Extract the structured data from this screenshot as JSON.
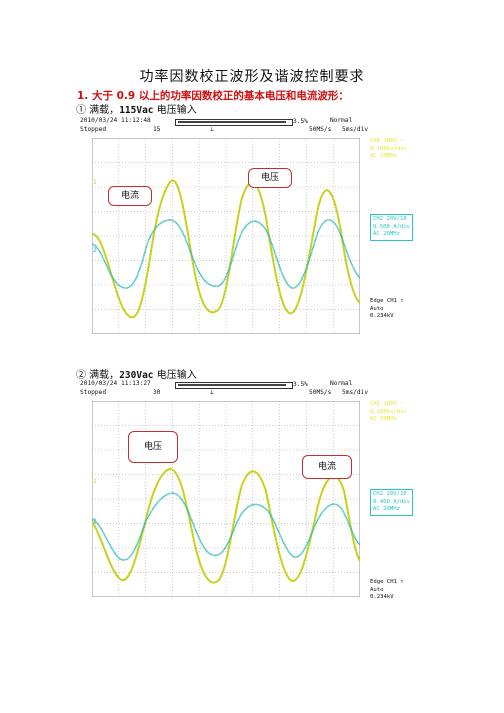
{
  "document": {
    "title": "功率因数校正波形及谐波控制要求",
    "section_heading": "1.   大于 0.9 以上的功率因数校正的基本电压和电流波形："
  },
  "figures": [
    {
      "caption_prefix": "①  满载，",
      "caption_value": "115Vac",
      "caption_suffix": " 电压输入",
      "header": {
        "datetime": "2010/03/24  11:12:48",
        "status": "Stopped",
        "count": "15",
        "trig_pos": "3.5%",
        "mode": "Normal",
        "rate": "50MS/s",
        "timebase": "5ms/div"
      },
      "ch1": [
        "CH1 100V ~",
        "0.100kv/div",
        "AC  20MHz"
      ],
      "ch2": [
        "CH2 20V/10",
        "0.500 A/div",
        "AC  20MHz"
      ],
      "trigger": [
        "Edge CH1 ↑",
        "Auto",
        "0.234kV"
      ],
      "callouts": {
        "current": "电流",
        "voltage": "电压"
      }
    },
    {
      "caption_prefix": "②  满载，",
      "caption_value": "230Vac",
      "caption_suffix": " 电压输入",
      "header": {
        "datetime": "2010/03/24  11:13:27",
        "status": "Stopped",
        "count": "30",
        "trig_pos": "3.5%",
        "mode": "Normal",
        "rate": "50MS/s",
        "timebase": "5ms/div"
      },
      "ch1": [
        "CH1 100V ~",
        "0.200kv/div",
        "AC  20MHz"
      ],
      "ch2": [
        "CH2 20V/10",
        "0.400 A/div",
        "AC  20MHz"
      ],
      "trigger": [
        "Edge CH1 ↑",
        "Auto",
        "0.234kV"
      ],
      "callouts": {
        "voltage": "电压",
        "current": "电流"
      }
    }
  ],
  "colors": {
    "voltage_trace": "#c8d21e",
    "current_trace": "#1fb5b5",
    "grid": "#9a9a9a",
    "callout_border": "#c03030"
  }
}
